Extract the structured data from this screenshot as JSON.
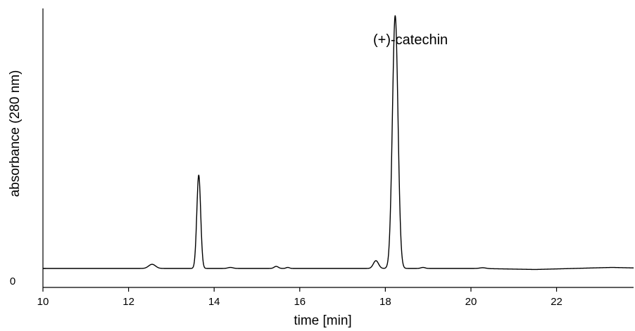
{
  "chart_data": {
    "type": "line",
    "title": "",
    "xlabel": "time [min]",
    "ylabel": "absorbance (280 nm)",
    "xlim": [
      10,
      23.8
    ],
    "ylim": [
      -0.05,
      1.0
    ],
    "x_ticks": [
      10,
      12,
      14,
      16,
      18,
      20,
      22
    ],
    "x_tick_labels": [
      "10",
      "12",
      "14",
      "16",
      "18",
      "20",
      "22"
    ],
    "y_ticks": [
      0
    ],
    "y_tick_labels": [
      "0"
    ],
    "grid": false,
    "legend": "none",
    "series": [
      {
        "baseline": 0.0,
        "peaks": [
          {
            "rt": 12.55,
            "height": 0.016,
            "width": 0.08
          },
          {
            "rt": 13.64,
            "height": 0.36,
            "width": 0.045
          },
          {
            "rt": 14.38,
            "height": 0.004,
            "width": 0.06
          },
          {
            "rt": 15.45,
            "height": 0.008,
            "width": 0.05
          },
          {
            "rt": 15.72,
            "height": 0.004,
            "width": 0.04
          },
          {
            "rt": 17.78,
            "height": 0.03,
            "width": 0.06
          },
          {
            "rt": 18.23,
            "height": 0.975,
            "width": 0.065
          },
          {
            "rt": 18.88,
            "height": 0.004,
            "width": 0.05
          },
          {
            "rt": 20.28,
            "height": 0.003,
            "width": 0.07
          }
        ],
        "drift": [
          {
            "x": 10.0,
            "y": 0.0
          },
          {
            "x": 20.2,
            "y": 0.0
          },
          {
            "x": 21.5,
            "y": -0.004
          },
          {
            "x": 23.3,
            "y": 0.004
          },
          {
            "x": 23.8,
            "y": 0.002
          }
        ]
      }
    ],
    "annotations": [
      {
        "text": "(+)-catechin",
        "x": 18.23
      }
    ]
  }
}
